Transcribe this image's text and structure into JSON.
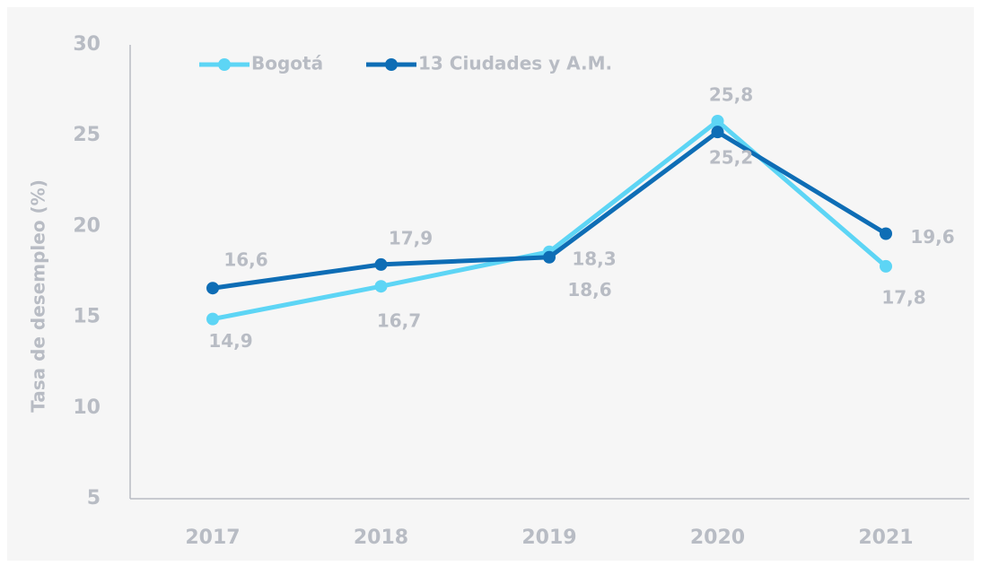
{
  "chart_data": {
    "type": "line",
    "y_label": "Tasa de desempleo (%)",
    "categories": [
      "2017",
      "2018",
      "2019",
      "2020",
      "2021"
    ],
    "series": [
      {
        "name": "Bogotá",
        "color": "#5dd5f5",
        "values": [
          14.9,
          16.7,
          18.6,
          25.8,
          17.8
        ],
        "value_labels": [
          "14,9",
          "16,7",
          "18,6",
          "25,8",
          "17,8"
        ]
      },
      {
        "name": "13 Ciudades y A.M.",
        "color": "#0e6db5",
        "values": [
          16.6,
          17.9,
          18.3,
          25.2,
          19.6
        ],
        "value_labels": [
          "16,6",
          "17,9",
          "18,3",
          "25,2",
          "19,6"
        ]
      }
    ],
    "ylim": [
      5,
      30
    ],
    "yticks": [
      5,
      10,
      15,
      20,
      25,
      30
    ],
    "grid": false,
    "legend": "top-left"
  }
}
